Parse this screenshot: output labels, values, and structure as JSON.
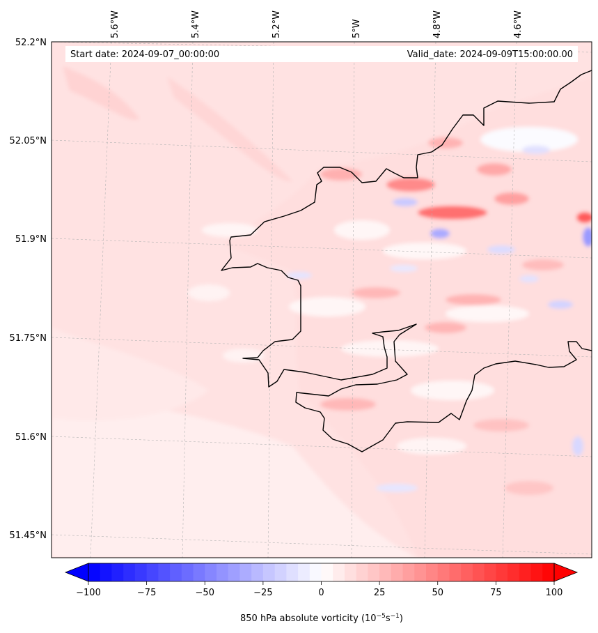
{
  "map": {
    "start_label": "Start date: 2024-09-07_00:00:00",
    "valid_label": "Valid_date: 2024-09-09T15:00:00.00",
    "lon_labels": [
      "5.6°W",
      "5.4°W",
      "5.2°W",
      "5°W",
      "4.8°W",
      "4.6°W"
    ],
    "lat_labels": [
      "52.2°N",
      "52.05°N",
      "51.9°N",
      "51.75°N",
      "51.6°N",
      "51.45°N"
    ],
    "field": "850 hPa absolute vorticity",
    "colors": {
      "negative": "#0000ff",
      "neutral": "#ffffff",
      "positive": "#ff0000",
      "coast": "#000000"
    }
  },
  "colorbar": {
    "ticks": [
      "−100",
      "−75",
      "−50",
      "−25",
      "0",
      "25",
      "50",
      "75",
      "100"
    ],
    "tick_values": [
      -100,
      -75,
      -50,
      -25,
      0,
      25,
      50,
      75,
      100
    ],
    "min": -100,
    "max": 100,
    "levels": 40,
    "label_main": "850 hPa absolute vorticity (10",
    "label_exp1": "−5",
    "label_mid": "s",
    "label_exp2": "−1",
    "label_end": ")"
  }
}
